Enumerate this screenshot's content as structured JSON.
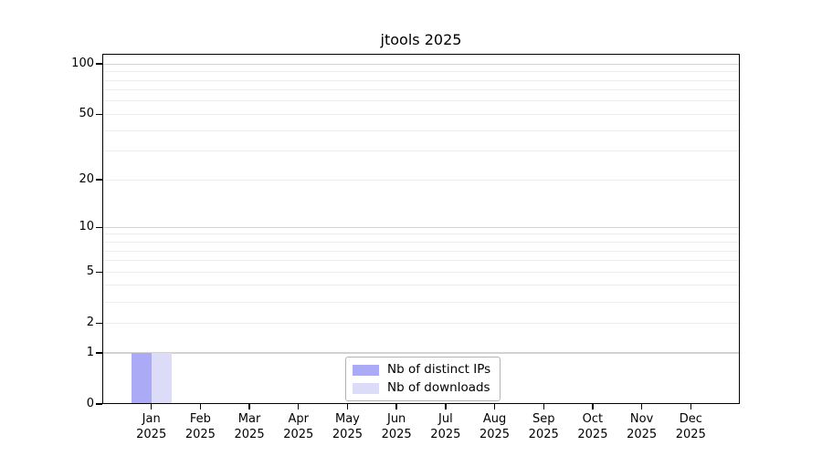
{
  "chart_data": {
    "type": "bar",
    "title": "jtools 2025",
    "categories": [
      "Jan",
      "Feb",
      "Mar",
      "Apr",
      "May",
      "Jun",
      "Jul",
      "Aug",
      "Sep",
      "Oct",
      "Nov",
      "Dec"
    ],
    "category_year": "2025",
    "series": [
      {
        "name": "Nb of distinct IPs",
        "color": "#aaaaf6",
        "values": [
          1,
          0,
          0,
          0,
          0,
          0,
          0,
          0,
          0,
          0,
          0,
          0
        ]
      },
      {
        "name": "Nb of downloads",
        "color": "#dcdcf8",
        "values": [
          1,
          0,
          0,
          0,
          0,
          0,
          0,
          0,
          0,
          0,
          0,
          0
        ]
      }
    ],
    "xlabel": "",
    "ylabel": "",
    "yticks": [
      0,
      1,
      2,
      5,
      10,
      20,
      50,
      100
    ],
    "ylim": [
      0,
      115
    ],
    "yscale": "log10(value+1)",
    "grid": {
      "on": true,
      "major_lines": [
        1,
        10,
        100
      ],
      "minor_lines": [
        2,
        3,
        4,
        5,
        6,
        7,
        8,
        9,
        20,
        30,
        40,
        50,
        60,
        70,
        80,
        90
      ],
      "major_color": "#d2d2d2",
      "minor_color": "#ededed"
    },
    "legend": {
      "position": "lower center"
    },
    "colors": {
      "background": "#ffffff",
      "spine": "#000000",
      "text": "#000000",
      "legend_border": "#b3b3b3"
    }
  }
}
